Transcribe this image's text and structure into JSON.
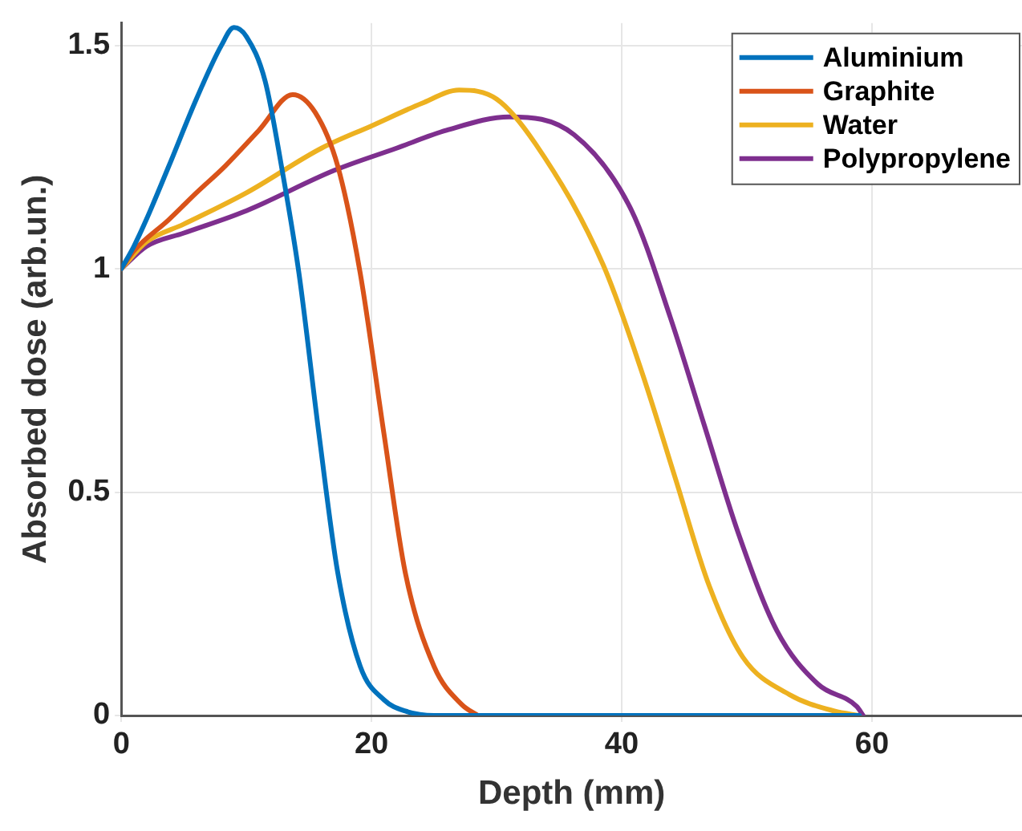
{
  "chart_data": {
    "type": "line",
    "xlabel": "Depth (mm)",
    "ylabel": "Absorbed dose (arb.un.)",
    "xlim": [
      0,
      72
    ],
    "ylim": [
      0,
      1.55
    ],
    "xticks": [
      0,
      20,
      40,
      60
    ],
    "yticks": [
      0,
      0.5,
      1,
      1.5
    ],
    "grid": true,
    "legend": "top right",
    "marker": "none",
    "line_style": "solid",
    "series": [
      {
        "name": "Aluminium",
        "color": "#0072bd",
        "x": [
          0,
          1,
          2,
          3.8,
          6,
          8,
          9,
          10,
          11.5,
          12.8,
          14.2,
          15.8,
          17.3,
          19.1,
          21,
          22.7,
          25,
          30,
          40,
          50,
          59
        ],
        "values": [
          1,
          1.05,
          1.11,
          1.23,
          1.38,
          1.5,
          1.54,
          1.52,
          1.42,
          1.23,
          0.99,
          0.63,
          0.32,
          0.11,
          0.035,
          0.01,
          0,
          0,
          0,
          0,
          0
        ]
      },
      {
        "name": "Graphite",
        "color": "#d95319",
        "x": [
          0,
          1,
          3.8,
          6,
          8.3,
          11,
          13.7,
          15.5,
          17.3,
          19.1,
          21,
          22.7,
          25,
          27.2,
          28.5
        ],
        "values": [
          1,
          1.04,
          1.11,
          1.17,
          1.23,
          1.31,
          1.39,
          1.35,
          1.23,
          0.99,
          0.63,
          0.32,
          0.11,
          0.025,
          0
        ]
      },
      {
        "name": "Water",
        "color": "#edb120",
        "x": [
          0,
          2,
          5,
          10,
          16,
          20,
          24,
          27,
          30,
          33.1,
          38.5,
          41.6,
          44.3,
          47,
          49.7,
          53.4,
          57,
          59
        ],
        "values": [
          1,
          1.06,
          1.1,
          1.17,
          1.27,
          1.32,
          1.37,
          1.4,
          1.38,
          1.28,
          1.01,
          0.77,
          0.53,
          0.29,
          0.13,
          0.047,
          0.01,
          0
        ]
      },
      {
        "name": "Polypropylene",
        "color": "#7e2f8e",
        "x": [
          0,
          2,
          5,
          10,
          17,
          22,
          26,
          31,
          36.2,
          40.8,
          43.9,
          46.6,
          49.3,
          52.4,
          55.7,
          58.8,
          59.3
        ],
        "values": [
          1,
          1.05,
          1.08,
          1.13,
          1.22,
          1.27,
          1.31,
          1.34,
          1.3,
          1.13,
          0.89,
          0.65,
          0.41,
          0.19,
          0.07,
          0.02,
          0
        ]
      }
    ]
  }
}
